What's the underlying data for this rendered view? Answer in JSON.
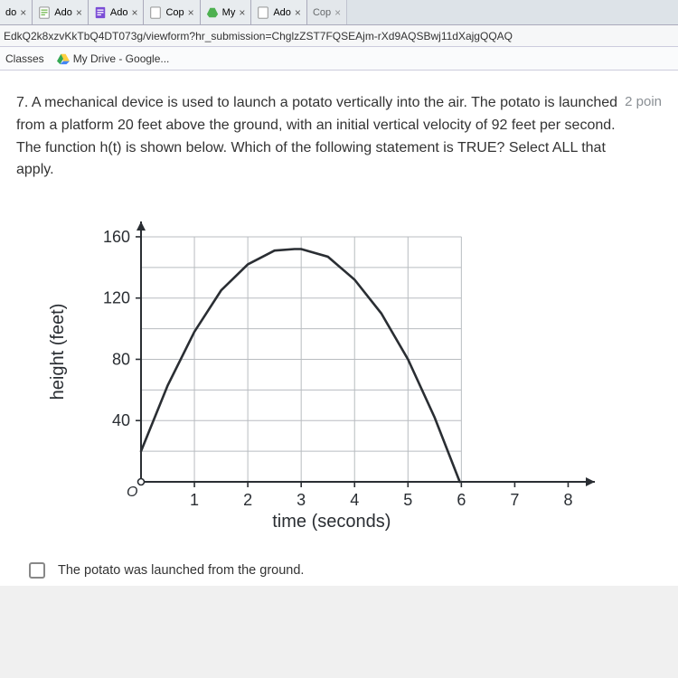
{
  "tabs": [
    {
      "label": "do",
      "close": "×",
      "color": "#ffffff"
    },
    {
      "label": "Ado",
      "close": "×",
      "color": "#ffffff"
    },
    {
      "label": "Ado",
      "close": "×",
      "color": "#ffffff"
    },
    {
      "label": "Cop",
      "close": "×",
      "color": "#ffffff"
    },
    {
      "label": "My",
      "close": "×",
      "color": "#ffffff"
    },
    {
      "label": "Ado",
      "close": "×",
      "color": "#ffffff"
    },
    {
      "label": "Cop",
      "close": "×",
      "color": "#a0a4a8"
    }
  ],
  "url": "EdkQ2k8xzvKkTbQ4DT073g/viewform?hr_submission=ChglzZST7FQSEAjm-rXd9AQSBwj11dXajgQQAQ",
  "bookmarks": {
    "classes": "Classes",
    "drive": "My Drive - Google..."
  },
  "question": {
    "number": "7.",
    "text": "A mechanical device is used to launch a potato vertically into the air. The potato is launched from a platform 20 feet above the ground, with an initial vertical velocity of 92 feet per second. The function h(t) is shown below. Which of the following statement is TRUE? Select ALL that apply.",
    "points": "2 poin"
  },
  "chart": {
    "type": "line",
    "ylabel": "height (feet)",
    "xlabel": "time (seconds)",
    "xticks": [
      1,
      2,
      3,
      4,
      5,
      6,
      7,
      8
    ],
    "yticks": [
      40,
      80,
      120,
      160
    ],
    "xlim": [
      0,
      8.5
    ],
    "ylim": [
      0,
      170
    ],
    "grid_xmax": 6,
    "grid_ymax": 160,
    "grid_color": "#b8bcc0",
    "axis_color": "#2a2e33",
    "curve_color": "#2a2e33",
    "curve_width": 2.6,
    "label_fontsize": 20,
    "tick_fontsize": 18,
    "background": "#ffffff",
    "curve": [
      [
        0,
        20
      ],
      [
        0.5,
        63
      ],
      [
        1,
        98
      ],
      [
        1.5,
        125
      ],
      [
        2,
        142
      ],
      [
        2.5,
        151
      ],
      [
        2.875,
        152
      ],
      [
        3,
        152
      ],
      [
        3.5,
        147
      ],
      [
        4,
        132
      ],
      [
        4.5,
        110
      ],
      [
        5,
        80
      ],
      [
        5.5,
        42
      ],
      [
        5.97,
        0
      ]
    ]
  },
  "options": [
    {
      "label": "The potato was launched from the ground.",
      "checked": false
    }
  ]
}
